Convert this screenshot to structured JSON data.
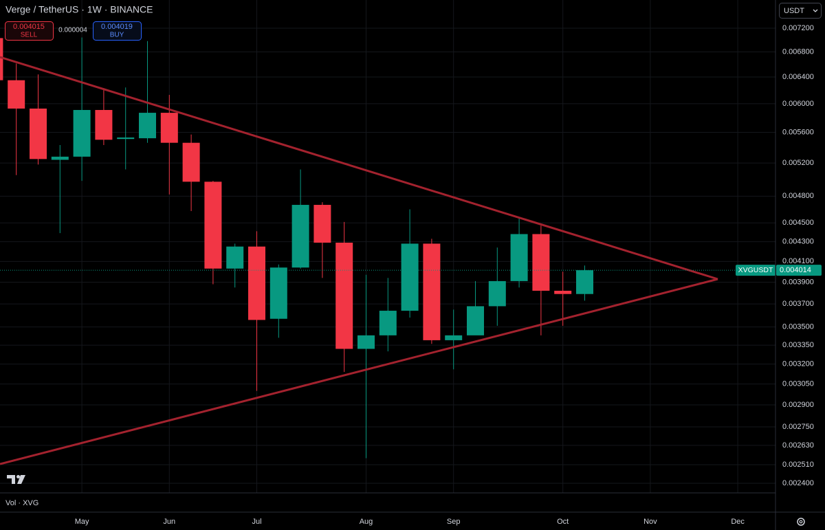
{
  "ui": {
    "symbol_title": "Verge / TetherUS · 1W · BINANCE",
    "sell_price": "0.004015",
    "sell_label": "SELL",
    "spread": "0.000004",
    "buy_price": "0.004019",
    "buy_label": "BUY",
    "currency": "USDT",
    "volume_label": "Vol · XVG"
  },
  "chart_data": {
    "type": "candlestick",
    "log_scale": true,
    "grid": true,
    "up_color": "#089981",
    "down_color": "#f23645",
    "categories": [
      null,
      null,
      null,
      null,
      "May",
      null,
      null,
      null,
      "Jun",
      null,
      null,
      null,
      "Jul",
      null,
      null,
      null,
      null,
      "Aug",
      null,
      null,
      null,
      "Sep",
      null,
      null,
      null,
      null,
      "Oct",
      null,
      null,
      null,
      "Nov",
      null,
      null,
      null,
      "Dec",
      null
    ],
    "open": [
      0.00703,
      0.00635,
      0.00593,
      0.00524,
      0.00528,
      0.00591,
      0.00551,
      0.00552,
      0.00587,
      0.00546,
      0.00497,
      0.00403,
      0.00425,
      0.00357,
      0.00404,
      0.0047,
      0.00429,
      0.00332,
      0.00343,
      0.00364,
      0.00428,
      0.00339,
      0.00343,
      0.00368,
      0.00391,
      0.00438,
      0.00382,
      0.00379,
      null,
      null,
      null,
      null,
      null,
      null,
      null,
      null
    ],
    "high": [
      0.00708,
      0.00661,
      0.00644,
      0.00543,
      0.00704,
      0.00623,
      0.00624,
      0.00698,
      0.00613,
      0.00557,
      0.00498,
      0.00428,
      0.00441,
      0.00407,
      0.00512,
      0.00473,
      0.00451,
      0.00397,
      0.00394,
      0.00465,
      0.00433,
      0.00365,
      0.00391,
      0.00424,
      0.00456,
      0.00447,
      0.004,
      0.00406,
      null,
      null,
      null,
      null,
      null,
      null,
      null,
      null
    ],
    "low": [
      0.00635,
      0.00505,
      0.00518,
      0.00439,
      0.00498,
      0.00543,
      0.00512,
      0.00546,
      0.00482,
      0.00463,
      0.00388,
      0.00385,
      0.003,
      0.00341,
      0.00403,
      0.00394,
      0.00314,
      0.00255,
      0.0033,
      0.00358,
      0.00336,
      0.00316,
      0.00345,
      0.00351,
      0.00385,
      0.00343,
      0.00351,
      0.00373,
      null,
      null,
      null,
      null,
      null,
      null,
      null,
      null
    ],
    "close": [
      0.00635,
      0.00593,
      0.00525,
      0.00528,
      0.00591,
      0.0055,
      0.00553,
      0.00587,
      0.00546,
      0.00497,
      0.00403,
      0.00425,
      0.00356,
      0.00404,
      0.0047,
      0.00429,
      0.00332,
      0.00343,
      0.00364,
      0.00428,
      0.00339,
      0.00343,
      0.00368,
      0.00391,
      0.00438,
      0.00382,
      0.00379,
      0.004014,
      null,
      null,
      null,
      null,
      null,
      null,
      null,
      null
    ],
    "ylim": [
      0.002345,
      0.007707
    ],
    "yticks": [
      {
        "value": 0.0072,
        "label": "0.007200"
      },
      {
        "value": 0.0068,
        "label": "0.006800"
      },
      {
        "value": 0.0064,
        "label": "0.006400"
      },
      {
        "value": 0.006,
        "label": "0.006000"
      },
      {
        "value": 0.0056,
        "label": "0.005600"
      },
      {
        "value": 0.0052,
        "label": "0.005200"
      },
      {
        "value": 0.0048,
        "label": "0.004800"
      },
      {
        "value": 0.0045,
        "label": "0.004500"
      },
      {
        "value": 0.0043,
        "label": "0.004300"
      },
      {
        "value": 0.0041,
        "label": "0.004100"
      },
      {
        "value": 0.0039,
        "label": "0.003900"
      },
      {
        "value": 0.0037,
        "label": "0.003700"
      },
      {
        "value": 0.0035,
        "label": "0.003500"
      },
      {
        "value": 0.00335,
        "label": "0.003350"
      },
      {
        "value": 0.0032,
        "label": "0.003200"
      },
      {
        "value": 0.00305,
        "label": "0.003050"
      },
      {
        "value": 0.0029,
        "label": "0.002900"
      },
      {
        "value": 0.00275,
        "label": "0.002750"
      },
      {
        "value": 0.00263,
        "label": "0.002630"
      },
      {
        "value": 0.00251,
        "label": "0.002510"
      },
      {
        "value": 0.0024,
        "label": "0.002400"
      }
    ],
    "price_line": {
      "name": "XVGUSDT",
      "value": 0.004014
    }
  }
}
